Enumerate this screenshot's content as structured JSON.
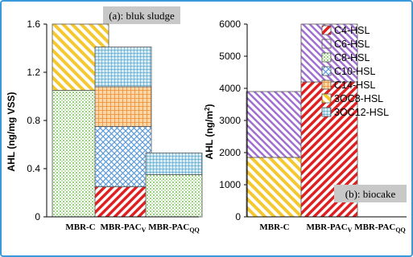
{
  "chart_data": [
    {
      "type": "bar",
      "stacked": true,
      "title": "(a): bluk sludge",
      "ylabel": "AHL (ng/mg VSS)",
      "ylim": [
        0,
        1.6
      ],
      "yticks": [
        "0",
        "0.4",
        "0.8",
        "1.2",
        "1.6"
      ],
      "categories": [
        "MBR-C",
        "MBR-PACv",
        "MBR-PACqq"
      ],
      "category_labels": [
        {
          "main": "MBR-C",
          "sub": ""
        },
        {
          "main": "MBR-PAC",
          "sub": "V"
        },
        {
          "main": "MBR-PAC",
          "sub": "QQ"
        }
      ],
      "series": [
        {
          "name": "C4-HSL",
          "values": [
            0,
            0.25,
            0
          ]
        },
        {
          "name": "C8-HSL",
          "values": [
            1.05,
            0,
            0.35
          ]
        },
        {
          "name": "C10-HSL",
          "values": [
            0,
            0.5,
            0
          ]
        },
        {
          "name": "C14-HSL",
          "values": [
            0,
            0.33,
            0
          ]
        },
        {
          "name": "3OC8-HSL",
          "values": [
            0.55,
            0,
            0
          ]
        },
        {
          "name": "3OC12-HSL",
          "values": [
            0,
            0.33,
            0.18
          ]
        }
      ]
    },
    {
      "type": "bar",
      "stacked": true,
      "title": "(b): biocake",
      "ylabel": "AHL (ng/m²)",
      "ylim": [
        0,
        6000
      ],
      "yticks": [
        "0",
        "1000",
        "2000",
        "3000",
        "4000",
        "5000",
        "6000"
      ],
      "categories": [
        "MBR-C",
        "MBR-PACv",
        "MBR-PACqq"
      ],
      "category_labels": [
        {
          "main": "MBR-C",
          "sub": ""
        },
        {
          "main": "MBR-PAC",
          "sub": "V"
        },
        {
          "main": "MBR-PAC",
          "sub": "QQ"
        }
      ],
      "series": [
        {
          "name": "C4-HSL",
          "values": [
            0,
            4200,
            0
          ]
        },
        {
          "name": "3OC8-HSL",
          "values": [
            1850,
            0,
            0
          ]
        },
        {
          "name": "C6-HSL",
          "values": [
            2050,
            1800,
            0
          ]
        }
      ]
    }
  ],
  "legend": {
    "entries": [
      {
        "label": "C4-HSL",
        "pattern": "diag-red"
      },
      {
        "label": "C6-HSL",
        "pattern": "diag-purple"
      },
      {
        "label": "C8-HSL",
        "pattern": "dots-green"
      },
      {
        "label": "C10-HSL",
        "pattern": "cross-blue"
      },
      {
        "label": "C14-HSL",
        "pattern": "grid-orange"
      },
      {
        "label": "3OC8-HSL",
        "pattern": "diag-yellow"
      },
      {
        "label": "3OC12-HSL",
        "pattern": "grid-blue"
      }
    ]
  },
  "colors": {
    "frame": "#3a9ad9",
    "title_box": "#c8c8c8",
    "red": "#e02020",
    "purple": "#a070d0",
    "green": "#8cc870",
    "blue": "#5a9ad8",
    "orange": "#f0a040",
    "yellow": "#f5c830",
    "teal": "#4aa0c8"
  }
}
